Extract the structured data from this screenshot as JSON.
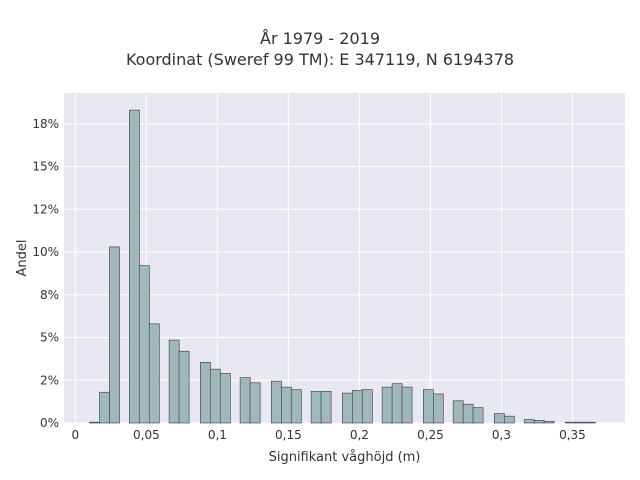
{
  "chart_data": {
    "type": "bar",
    "title": "År 1979 - 2019",
    "subtitle": "Koordinat (Sweref 99 TM): E 347119, N 6194378",
    "xlabel": "Signifikant våghöjd (m)",
    "ylabel": "Andel",
    "xlim": [
      -0.008,
      0.387
    ],
    "ylim": [
      0,
      19.3
    ],
    "x_ticks": [
      0,
      0.05,
      0.1,
      0.15,
      0.2,
      0.25,
      0.3,
      0.35
    ],
    "x_tick_labels": [
      "0",
      "0,05",
      "0,1",
      "0,15",
      "0,2",
      "0,25",
      "0,3",
      "0,35"
    ],
    "y_ticks": [
      0,
      2.5,
      5,
      7.5,
      10,
      12.5,
      15,
      17.5
    ],
    "y_tick_labels": [
      "0%",
      "2%",
      "5%",
      "8%",
      "10%",
      "12%",
      "15%",
      "18%"
    ],
    "bin_width": 0.0071,
    "bins": [
      {
        "x0": 0.01,
        "value": 0.05
      },
      {
        "x0": 0.017,
        "value": 1.8
      },
      {
        "x0": 0.024,
        "value": 10.3
      },
      {
        "x0": 0.038,
        "value": 18.3
      },
      {
        "x0": 0.045,
        "value": 9.2
      },
      {
        "x0": 0.052,
        "value": 5.8
      },
      {
        "x0": 0.066,
        "value": 4.85
      },
      {
        "x0": 0.073,
        "value": 4.2
      },
      {
        "x0": 0.088,
        "value": 3.55
      },
      {
        "x0": 0.095,
        "value": 3.15
      },
      {
        "x0": 0.102,
        "value": 2.9
      },
      {
        "x0": 0.116,
        "value": 2.65
      },
      {
        "x0": 0.123,
        "value": 2.35
      },
      {
        "x0": 0.138,
        "value": 2.45
      },
      {
        "x0": 0.145,
        "value": 2.1
      },
      {
        "x0": 0.152,
        "value": 1.95
      },
      {
        "x0": 0.166,
        "value": 1.85
      },
      {
        "x0": 0.173,
        "value": 1.85
      },
      {
        "x0": 0.188,
        "value": 1.75
      },
      {
        "x0": 0.195,
        "value": 1.9
      },
      {
        "x0": 0.202,
        "value": 1.95
      },
      {
        "x0": 0.216,
        "value": 2.1
      },
      {
        "x0": 0.223,
        "value": 2.3
      },
      {
        "x0": 0.23,
        "value": 2.1
      },
      {
        "x0": 0.245,
        "value": 1.95
      },
      {
        "x0": 0.252,
        "value": 1.7
      },
      {
        "x0": 0.266,
        "value": 1.3
      },
      {
        "x0": 0.273,
        "value": 1.1
      },
      {
        "x0": 0.28,
        "value": 0.9
      },
      {
        "x0": 0.295,
        "value": 0.55
      },
      {
        "x0": 0.302,
        "value": 0.4
      },
      {
        "x0": 0.316,
        "value": 0.2
      },
      {
        "x0": 0.323,
        "value": 0.15
      },
      {
        "x0": 0.33,
        "value": 0.1
      },
      {
        "x0": 0.345,
        "value": 0.05
      },
      {
        "x0": 0.352,
        "value": 0.05
      },
      {
        "x0": 0.359,
        "value": 0.05
      }
    ],
    "grid": true,
    "legend": "none",
    "colors": {
      "bar_fill": "#a0b8b8",
      "bar_stroke": "#3a3a3a",
      "plot_bg": "#e8e8f0",
      "grid": "#ffffff"
    }
  }
}
